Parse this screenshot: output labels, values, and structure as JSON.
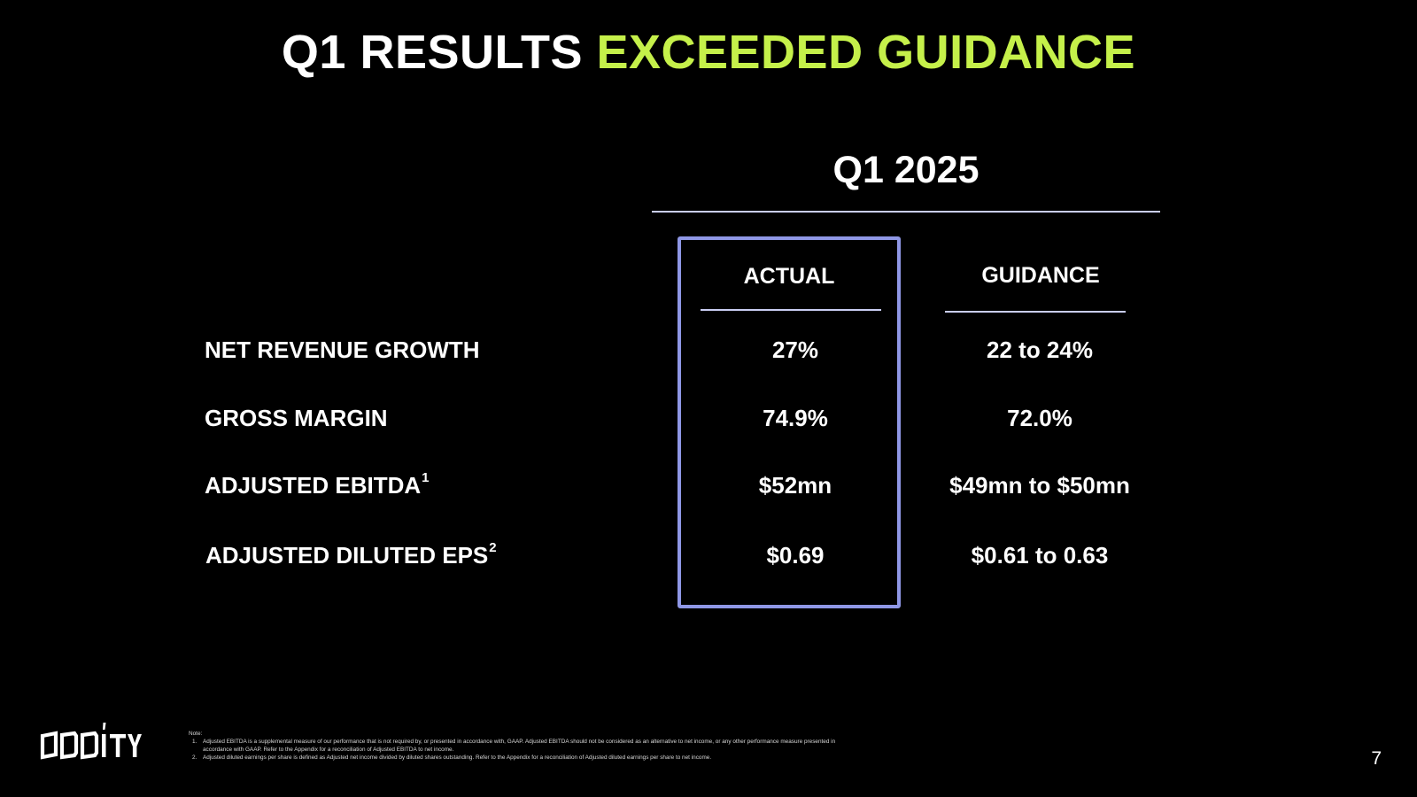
{
  "slide": {
    "title_prefix": "Q1 RESULTS ",
    "title_accent": "EXCEEDED GUIDANCE",
    "accent_color": "#c5f04a",
    "box_color": "#8f97e6"
  },
  "table": {
    "period": "Q1 2025",
    "columns": {
      "actual": "ACTUAL",
      "guidance": "GUIDANCE"
    },
    "rows": [
      {
        "label": "NET REVENUE GROWTH",
        "sup": "",
        "actual": "27%",
        "guidance": "22 to 24%"
      },
      {
        "label": "GROSS MARGIN",
        "sup": "",
        "actual": "74.9%",
        "guidance": "72.0%"
      },
      {
        "label": "ADJUSTED EBITDA",
        "sup": "1",
        "actual": "$52mn",
        "guidance": "$49mn to $50mn"
      },
      {
        "label": "ADJUSTED DILUTED EPS",
        "sup": "2",
        "actual": "$0.69",
        "guidance": "$0.61 to 0.63"
      }
    ]
  },
  "footer": {
    "logo_text": "ODDITY",
    "note_heading": "Note:",
    "notes": [
      {
        "num": "1.",
        "text": "Adjusted EBITDA is a supplemental measure of our performance that is not required by, or presented in accordance with, GAAP.  Adjusted EBITDA should not be considered as an alternative to net income, or any other performance measure presented in accordance with GAAP. Refer to the Appendix for a reconciliation of Adjusted EBITDA to net income."
      },
      {
        "num": "2.",
        "text": "Adjusted diluted earnings per share is defined as Adjusted net income divided by diluted shares outstanding. Refer to the Appendix for a reconciliation of Adjusted diluted earnings per share to net income."
      }
    ],
    "page_number": "7"
  }
}
